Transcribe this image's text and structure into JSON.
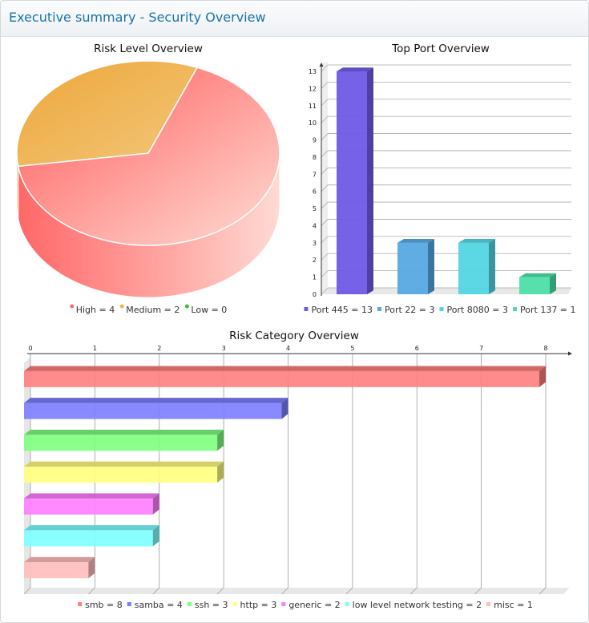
{
  "header": {
    "title": "Executive summary - Security Overview"
  },
  "colors": {
    "title": "#1a73a8",
    "high": "#ff6e6e",
    "medium": "#f0b452",
    "low": "#3fbf3f",
    "port445": "#6f5ae6",
    "port22": "#56a9e2",
    "port8080": "#52d6e2",
    "port137": "#4ddfa8",
    "smb": "#ff7f7f",
    "samba": "#7d7dff",
    "ssh": "#7dff7d",
    "http": "#ffff7d",
    "generic": "#ff7dff",
    "llnt": "#7dffff",
    "misc": "#ffbdbd"
  },
  "chart_data": [
    {
      "type": "pie",
      "title": "Risk Level Overview",
      "slices": [
        {
          "label": "High",
          "value": 4,
          "legend": "High = 4",
          "color": "#ff6e6e"
        },
        {
          "label": "Medium",
          "value": 2,
          "legend": "Medium = 2",
          "color": "#f0b452"
        },
        {
          "label": "Low",
          "value": 0,
          "legend": "Low = 0",
          "color": "#3fbf3f"
        }
      ],
      "legend_position": "bottom"
    },
    {
      "type": "bar",
      "title": "Top Port Overview",
      "categories": [
        "Port 445",
        "Port 22",
        "Port 8080",
        "Port 137"
      ],
      "values": [
        13,
        3,
        3,
        1
      ],
      "legend": [
        "Port 445 = 13",
        "Port 22 = 3",
        "Port 8080 = 3",
        "Port 137 = 1"
      ],
      "colors": [
        "#6f5ae6",
        "#56a9e2",
        "#52d6e2",
        "#4ddfa8"
      ],
      "ylim": [
        0,
        13
      ],
      "yticks": [
        "0",
        "1",
        "2",
        "3",
        "4",
        "5",
        "6",
        "7",
        "8",
        "9",
        "10",
        "11",
        "12",
        "13"
      ],
      "grid": true,
      "legend_position": "bottom"
    },
    {
      "type": "bar",
      "orientation": "horizontal",
      "title": "Risk Category Overview",
      "categories": [
        "smb",
        "samba",
        "ssh",
        "http",
        "generic",
        "low level network testing",
        "misc"
      ],
      "values": [
        8,
        4,
        3,
        3,
        2,
        2,
        1
      ],
      "legend": [
        "smb = 8",
        "samba = 4",
        "ssh = 3",
        "http = 3",
        "generic = 2",
        "low level network testing = 2",
        "misc = 1"
      ],
      "colors": [
        "#ff7f7f",
        "#7d7dff",
        "#7dff7d",
        "#ffff7d",
        "#ff7dff",
        "#7dffff",
        "#ffbdbd"
      ],
      "xlim": [
        0,
        8
      ],
      "xticks": [
        "0",
        "1",
        "2",
        "3",
        "4",
        "5",
        "6",
        "7",
        "8"
      ],
      "grid": true,
      "legend_position": "bottom"
    }
  ]
}
